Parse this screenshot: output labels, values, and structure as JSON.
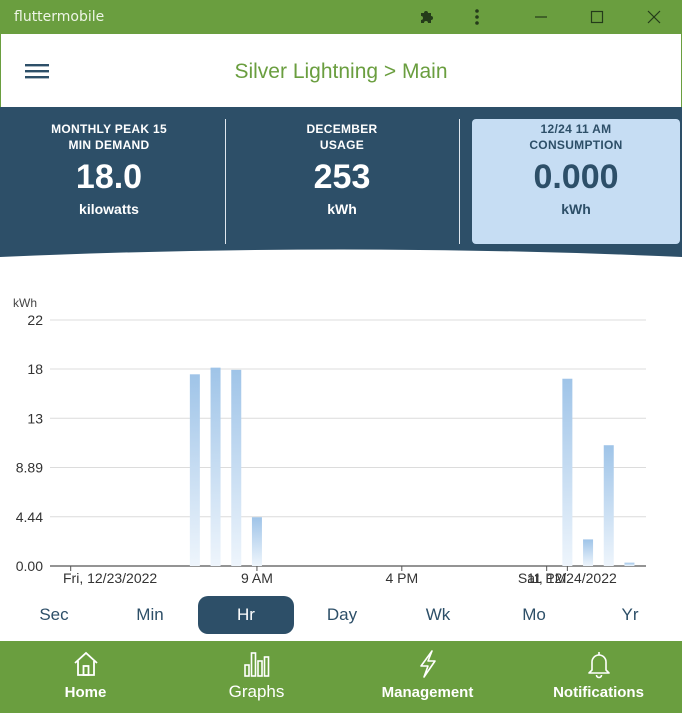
{
  "window": {
    "title": "fluttermobile"
  },
  "header": {
    "title": "Silver Lightning > Main"
  },
  "stats": [
    {
      "label_line1": "MONTHLY PEAK 15",
      "label_line2": "MIN DEMAND",
      "value": "18.0",
      "unit": "kilowatts"
    },
    {
      "label_line1": "DECEMBER",
      "label_line2": "USAGE",
      "value": "253",
      "unit": "kWh"
    },
    {
      "label_line1": "12/24 11 AM",
      "label_line2": "CONSUMPTION",
      "value": "0.000",
      "unit": "kWh"
    }
  ],
  "chart_data": {
    "type": "bar",
    "ylabel": "kWh",
    "ylim": [
      0,
      22
    ],
    "y_ticks": [
      "22",
      "18",
      "13",
      "8.89",
      "4.44",
      "0.00"
    ],
    "y_tick_values": [
      22.2,
      17.78,
      13.33,
      8.89,
      4.44,
      0
    ],
    "x_ticks": [
      {
        "label": "Fri, 12/23/2022",
        "hour": 0
      },
      {
        "label": "9 AM",
        "hour": 9
      },
      {
        "label": "4 PM",
        "hour": 16
      },
      {
        "label": "11 PM",
        "hour": 23
      },
      {
        "label": "Sat, 12/24/2022",
        "hour": 24
      }
    ],
    "bars": [
      {
        "hour": 6,
        "value": 17.3
      },
      {
        "hour": 7,
        "value": 17.9
      },
      {
        "hour": 8,
        "value": 17.7
      },
      {
        "hour": 9,
        "value": 4.4
      },
      {
        "hour": 24,
        "value": 16.9
      },
      {
        "hour": 25,
        "value": 2.4
      },
      {
        "hour": 26,
        "value": 10.9
      },
      {
        "hour": 27,
        "value": 0.3
      }
    ],
    "x_range_hours": [
      -1,
      27.8
    ],
    "colors": {
      "bar_top": "#9fc4e8",
      "bar_bottom": "#eef5fc"
    }
  },
  "timeframes": [
    "Sec",
    "Min",
    "Hr",
    "Day",
    "Wk",
    "Mo",
    "Yr"
  ],
  "selected_timeframe": "Hr",
  "nav": [
    {
      "label": "Home",
      "icon": "home-icon"
    },
    {
      "label": "Graphs",
      "icon": "bar-chart-icon"
    },
    {
      "label": "Management",
      "icon": "lightning-icon"
    },
    {
      "label": "Notifications",
      "icon": "bell-icon"
    }
  ],
  "colors": {
    "brand_green": "#6a9e3f",
    "navy": "#2d4f68",
    "highlight": "#c6ddf3"
  }
}
